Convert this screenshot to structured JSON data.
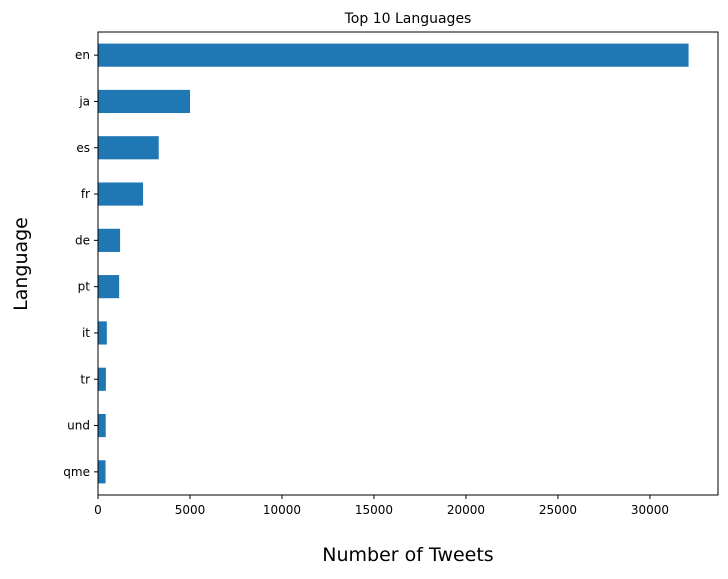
{
  "chart_data": {
    "type": "bar",
    "orientation": "horizontal",
    "title": "Top 10 Languages",
    "xlabel": "Number of Tweets",
    "ylabel": "Language",
    "categories": [
      "en",
      "ja",
      "es",
      "fr",
      "de",
      "pt",
      "it",
      "tr",
      "und",
      "qme"
    ],
    "values": [
      32100,
      5000,
      3300,
      2450,
      1200,
      1150,
      480,
      430,
      420,
      410
    ],
    "xlim": [
      0,
      33700
    ],
    "xticks": [
      0,
      5000,
      10000,
      15000,
      20000,
      25000,
      30000
    ],
    "grid": false,
    "bar_color": "#1f77b4"
  }
}
